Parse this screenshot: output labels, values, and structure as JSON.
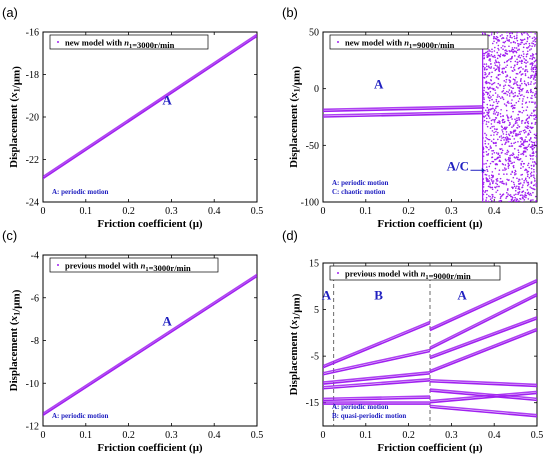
{
  "colors": {
    "curve": "#a020f0",
    "annotation": "#2020c0"
  },
  "chart_data": [
    {
      "panel": "(a)",
      "type": "scatter",
      "legend": "new model with n1=3000r/min",
      "xlabel": "Friction coefficient (μ)",
      "ylabel": "Displacement (x1/μm)",
      "xlim": [
        0,
        0.5
      ],
      "ylim": [
        -24,
        -16
      ],
      "xticks": [
        "0",
        "0.1",
        "0.2",
        "0.3",
        "0.4",
        "0.5"
      ],
      "yticks": [
        "-24",
        "-22",
        "-20",
        "-18",
        "-16"
      ],
      "legend_placement": "top-left",
      "regions": [
        {
          "label": "A",
          "x": 0.29,
          "y": -19.4
        }
      ],
      "notes": [
        "A: periodic motion"
      ],
      "series": [
        {
          "x": [
            0,
            0.5
          ],
          "y": [
            -22.9,
            -16.2
          ]
        }
      ]
    },
    {
      "panel": "(b)",
      "type": "scatter",
      "legend": "new model with n1=9000r/min",
      "xlabel": "Friction coefficient (μ)",
      "ylabel": "Displacement (x1/μm)",
      "xlim": [
        0,
        0.5
      ],
      "ylim": [
        -100,
        50
      ],
      "xticks": [
        "0",
        "0.1",
        "0.2",
        "0.3",
        "0.4",
        "0.5"
      ],
      "yticks": [
        "-100",
        "-50",
        "0",
        "50"
      ],
      "legend_placement": "top-left",
      "regions": [
        {
          "label": "A",
          "x": 0.13,
          "y": 0
        },
        {
          "label": "A/C",
          "x": 0.315,
          "y": -72
        }
      ],
      "notes": [
        "A: periodic motion",
        "C: chaotic motion"
      ],
      "chaos_range": [
        0.373,
        0.5
      ],
      "series": [
        {
          "x": [
            0,
            0.373
          ],
          "y": [
            -20,
            -17
          ]
        },
        {
          "x": [
            0,
            0.373
          ],
          "y": [
            -25,
            -22
          ]
        }
      ]
    },
    {
      "panel": "(c)",
      "type": "scatter",
      "legend": "previous model with n1=3000r/min",
      "xlabel": "Friction coefficient (μ)",
      "ylabel": "Displacement (x1/μm)",
      "xlim": [
        0,
        0.5
      ],
      "ylim": [
        -12,
        -4
      ],
      "xticks": [
        "0",
        "0.1",
        "0.2",
        "0.3",
        "0.4",
        "0.5"
      ],
      "yticks": [
        "-12",
        "-10",
        "-8",
        "-6",
        "-4"
      ],
      "legend_placement": "top-left",
      "regions": [
        {
          "label": "A",
          "x": 0.29,
          "y": -7.3
        }
      ],
      "notes": [
        "A: periodic motion"
      ],
      "series": [
        {
          "x": [
            0,
            0.5
          ],
          "y": [
            -11.5,
            -5.0
          ]
        }
      ]
    },
    {
      "panel": "(d)",
      "type": "scatter",
      "legend": "previous model with n1=9000r/min",
      "xlabel": "Friction coefficient (μ)",
      "ylabel": "Displacement (x1/μm)",
      "xlim": [
        0,
        0.5
      ],
      "ylim": [
        -20,
        15
      ],
      "xticks": [
        "0",
        "0.1",
        "0.2",
        "0.3",
        "0.4",
        "0.5"
      ],
      "yticks": [
        "-15",
        "-5",
        "5",
        "15"
      ],
      "legend_placement": "top-left",
      "dashed_x": [
        0.025,
        0.25
      ],
      "regions": [
        {
          "label": "A",
          "x": 0.008,
          "y": 7.2
        },
        {
          "label": "B",
          "x": 0.13,
          "y": 7.2
        },
        {
          "label": "A",
          "x": 0.325,
          "y": 7.2
        }
      ],
      "notes": [
        "A: periodic motion",
        "B: quasi-periodic motion"
      ],
      "series": [
        {
          "x": [
            0,
            0.25
          ],
          "y": [
            -7.5,
            2.0
          ]
        },
        {
          "x": [
            0,
            0.25
          ],
          "y": [
            -9.0,
            -4.0
          ]
        },
        {
          "x": [
            0,
            0.25
          ],
          "y": [
            -11.0,
            -8.8
          ]
        },
        {
          "x": [
            0,
            0.25
          ],
          "y": [
            -12.0,
            -10.3
          ]
        },
        {
          "x": [
            0,
            0.25
          ],
          "y": [
            -14.5,
            -14.0
          ]
        },
        {
          "x": [
            0,
            0.25
          ],
          "y": [
            -15.3,
            -15.3
          ]
        },
        {
          "x": [
            0.25,
            0.5
          ],
          "y": [
            0.5,
            11.0
          ]
        },
        {
          "x": [
            0.25,
            0.5
          ],
          "y": [
            -3.5,
            8.0
          ]
        },
        {
          "x": [
            0.25,
            0.5
          ],
          "y": [
            -5.5,
            3.0
          ]
        },
        {
          "x": [
            0.25,
            0.5
          ],
          "y": [
            -8.5,
            0.5
          ]
        },
        {
          "x": [
            0.25,
            0.5
          ],
          "y": [
            -10.5,
            -11.5
          ]
        },
        {
          "x": [
            0.25,
            0.5
          ],
          "y": [
            -12.5,
            -14.5
          ]
        },
        {
          "x": [
            0.25,
            0.5
          ],
          "y": [
            -15.0,
            -13.0
          ]
        },
        {
          "x": [
            0.25,
            0.5
          ],
          "y": [
            -16.0,
            -18.0
          ]
        }
      ]
    }
  ]
}
